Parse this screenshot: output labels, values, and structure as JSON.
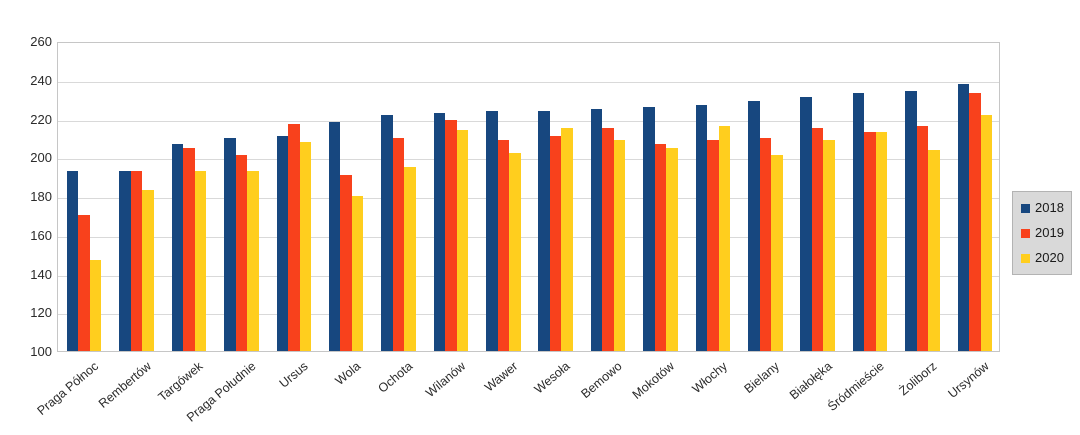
{
  "chart_data": {
    "type": "bar",
    "title": "",
    "xlabel": "",
    "ylabel": "",
    "categories": [
      "Praga Północ",
      "Rembertów",
      "Targówek",
      "Praga Południe",
      "Ursus",
      "Wola",
      "Ochota",
      "Wilanów",
      "Wawer",
      "Wesoła",
      "Bemowo",
      "Mokotów",
      "Włochy",
      "Bielany",
      "Białołęka",
      "Śródmieście",
      "Żoliborz",
      "Ursynów"
    ],
    "series": [
      {
        "name": "2018",
        "color": "#17477F",
        "values": [
          193,
          193,
          207,
          210,
          211,
          218,
          222,
          223,
          224,
          224,
          225,
          226,
          227,
          229,
          231,
          233,
          234,
          238
        ]
      },
      {
        "name": "2019",
        "color": "#F8411C",
        "values": [
          170,
          193,
          205,
          201,
          217,
          191,
          210,
          219,
          209,
          211,
          215,
          207,
          209,
          210,
          215,
          213,
          216,
          233
        ]
      },
      {
        "name": "2020",
        "color": "#FFCE1E",
        "values": [
          147,
          183,
          193,
          193,
          208,
          180,
          195,
          214,
          202,
          215,
          209,
          205,
          216,
          201,
          209,
          213,
          204,
          222
        ]
      }
    ],
    "ylim": [
      100,
      260
    ],
    "yticks": [
      260,
      240,
      220,
      200,
      180,
      160,
      140,
      120,
      100
    ],
    "grid": "horizontal",
    "legend_position": "right",
    "legend_labels": [
      "2018",
      "2019",
      "2020"
    ]
  },
  "colors": {
    "series_2018": "#17477F",
    "series_2019": "#F8411C",
    "series_2020": "#FFCE1E",
    "gridline": "#d9d9d9",
    "plot_border": "#c6c6c6",
    "legend_background": "#d9d9d9",
    "text": "#2b2b2b"
  }
}
